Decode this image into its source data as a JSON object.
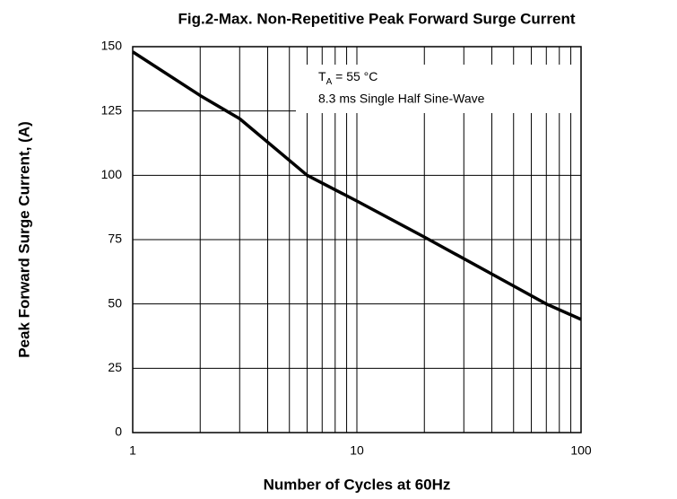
{
  "chart_data": {
    "type": "line",
    "title": "Fig.2-Max. Non-Repetitive Peak Forward Surge Current",
    "xlabel": "Number of Cycles at 60Hz",
    "ylabel": "Peak Forward Surge Current, (A)",
    "annotations": [
      {
        "text": "T",
        "sub": "A",
        "rest": " = 55 °C"
      },
      {
        "text": "8.3 ms Single Half Sine-Wave"
      }
    ],
    "x": [
      1,
      2,
      3,
      6,
      10,
      20,
      50,
      70,
      100
    ],
    "series": [
      {
        "name": null,
        "color": "#000000",
        "values": [
          148,
          131,
          122,
          100,
          90,
          76,
          57,
          50,
          44
        ]
      }
    ],
    "xscale": "log",
    "xlim": [
      1,
      100
    ],
    "xticks": [
      1,
      10,
      100
    ],
    "xminor": [
      2,
      3,
      4,
      5,
      6,
      7,
      8,
      9,
      20,
      30,
      40,
      50,
      60,
      70,
      80,
      90
    ],
    "ylim": [
      0,
      150
    ],
    "yticks": [
      0,
      25,
      50,
      75,
      100,
      125,
      150
    ],
    "grid": true
  }
}
